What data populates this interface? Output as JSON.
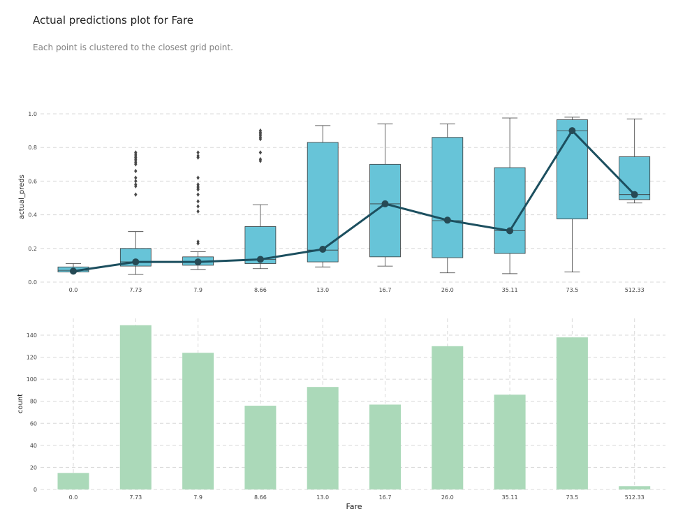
{
  "title": "Actual predictions plot for Fare",
  "subtitle": "Each point is clustered to the closest grid point.",
  "colors": {
    "box": "#67c4d8",
    "box_edge": "#3a3a3a",
    "line": "#1c4f5f",
    "bar": "#abd9b9",
    "grid": "#d8d8d8"
  },
  "chart_data": [
    {
      "type": "box",
      "ylabel": "actual_preds",
      "ylim": [
        0,
        1.0
      ],
      "yticks": [
        "0.0",
        "0.2",
        "0.4",
        "0.6",
        "0.8",
        "1.0"
      ],
      "categories": [
        "0.0",
        "7.73",
        "7.9",
        "8.66",
        "13.0",
        "16.7",
        "26.0",
        "35.11",
        "73.5",
        "512.33"
      ],
      "boxes": [
        {
          "whislo": 0.06,
          "q1": 0.06,
          "med": 0.07,
          "q3": 0.09,
          "whishi": 0.11,
          "fliers": []
        },
        {
          "whislo": 0.045,
          "q1": 0.095,
          "med": 0.12,
          "q3": 0.2,
          "whishi": 0.3,
          "fliers": [
            0.52,
            0.57,
            0.58,
            0.6,
            0.62,
            0.66,
            0.7,
            0.71,
            0.72,
            0.73,
            0.74,
            0.75,
            0.76,
            0.77
          ]
        },
        {
          "whislo": 0.075,
          "q1": 0.1,
          "med": 0.12,
          "q3": 0.15,
          "whishi": 0.18,
          "fliers": [
            0.23,
            0.24,
            0.42,
            0.45,
            0.48,
            0.52,
            0.55,
            0.56,
            0.57,
            0.58,
            0.62,
            0.74,
            0.75,
            0.77
          ]
        },
        {
          "whislo": 0.08,
          "q1": 0.11,
          "med": 0.135,
          "q3": 0.33,
          "whishi": 0.46,
          "fliers": [
            0.72,
            0.73,
            0.77,
            0.85,
            0.86,
            0.87,
            0.88,
            0.89,
            0.9
          ]
        },
        {
          "whislo": 0.09,
          "q1": 0.12,
          "med": 0.19,
          "q3": 0.83,
          "whishi": 0.93,
          "fliers": []
        },
        {
          "whislo": 0.095,
          "q1": 0.15,
          "med": 0.465,
          "q3": 0.7,
          "whishi": 0.94,
          "fliers": []
        },
        {
          "whislo": 0.055,
          "q1": 0.145,
          "med": 0.365,
          "q3": 0.86,
          "whishi": 0.94,
          "fliers": []
        },
        {
          "whislo": 0.05,
          "q1": 0.17,
          "med": 0.305,
          "q3": 0.68,
          "whishi": 0.975,
          "fliers": []
        },
        {
          "whislo": 0.06,
          "q1": 0.375,
          "med": 0.9,
          "q3": 0.965,
          "whishi": 0.98,
          "fliers": []
        },
        {
          "whislo": 0.47,
          "q1": 0.49,
          "med": 0.52,
          "q3": 0.745,
          "whishi": 0.97,
          "fliers": []
        }
      ],
      "line_values": [
        0.065,
        0.12,
        0.12,
        0.135,
        0.195,
        0.465,
        0.368,
        0.305,
        0.9,
        0.52
      ],
      "grid": true
    },
    {
      "type": "bar",
      "xlabel": "Fare",
      "ylabel": "count",
      "ylim": [
        0,
        155
      ],
      "yticks": [
        "0",
        "20",
        "40",
        "60",
        "80",
        "100",
        "120",
        "140"
      ],
      "categories": [
        "0.0",
        "7.73",
        "7.9",
        "8.66",
        "13.0",
        "16.7",
        "26.0",
        "35.11",
        "73.5",
        "512.33"
      ],
      "values": [
        15,
        149,
        124,
        76,
        93,
        77,
        130,
        86,
        138,
        3
      ],
      "grid": true
    }
  ]
}
